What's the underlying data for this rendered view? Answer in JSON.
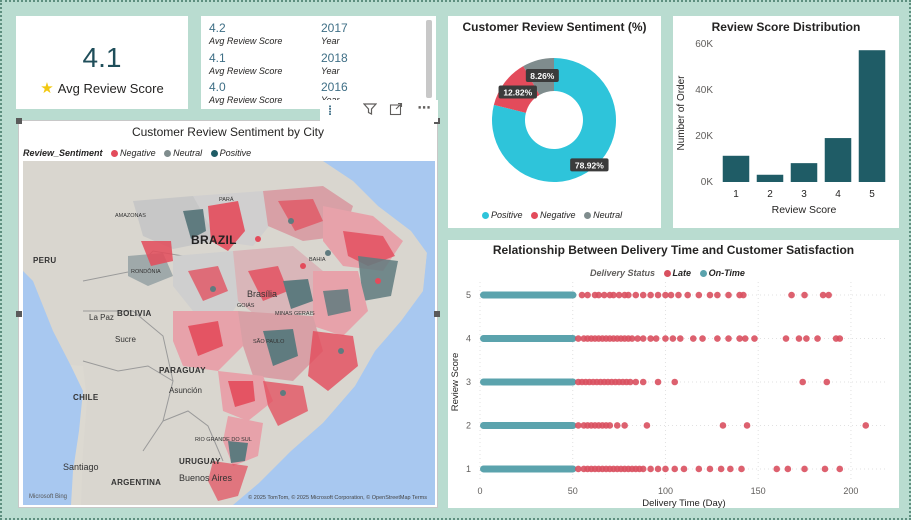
{
  "colors": {
    "positive": "#2ec4da",
    "negative": "#e34b5b",
    "neutral": "#7f8c8d",
    "bar": "#1f5c66",
    "late": "#d9505f",
    "ontime": "#5ba3ad",
    "accent": "#1f4e5a"
  },
  "kpi": {
    "value": "4.1",
    "label": "Avg Review Score",
    "icon": "star-icon"
  },
  "multi_row_card": {
    "rows": [
      {
        "score": "4.2",
        "score_label": "Avg Review Score",
        "year": "2017",
        "year_label": "Year"
      },
      {
        "score": "4.1",
        "score_label": "Avg Review Score",
        "year": "2018",
        "year_label": "Year"
      },
      {
        "score": "4.0",
        "score_label": "Avg Review Score",
        "year": "2016",
        "year_label": "Year"
      }
    ]
  },
  "toolbar": {
    "icons": [
      "filter-icon",
      "focus-mode-icon",
      "more-options-icon"
    ]
  },
  "map": {
    "title": "Customer Review Sentiment by City",
    "legend_title": "Review_Sentiment",
    "legend": [
      "Negative",
      "Neutral",
      "Positive"
    ],
    "labels": {
      "brazil": "BRAZIL",
      "peru": "PERU",
      "bolivia": "BOLIVIA",
      "paraguay": "PARAGUAY",
      "chile": "CHILE",
      "argentina": "ARGENTINA",
      "uruguay": "URUGUAY",
      "lapaz": "La Paz",
      "sucre": "Sucre",
      "asuncion": "Asunción",
      "santiago": "Santiago",
      "buenosaires": "Buenos Aires",
      "brasilia": "Brasília",
      "amazonas": "AMAZONAS",
      "para": "PARÁ",
      "rondonia": "RONDÔNIA",
      "goias": "GOIÁS",
      "saopaulo": "SÃO PAULO",
      "riograndedosul": "RIO GRANDE DO SUL",
      "bahia": "BAHIA",
      "minas": "MINAS GERAIS"
    },
    "credit": "© 2025 TomTom, © 2025 Microsoft Corporation, © OpenStreetMap Terms",
    "brand": "Microsoft Bing"
  },
  "chart_data": [
    {
      "type": "pie",
      "title": "Customer Review Sentiment (%)",
      "categories": [
        "Positive",
        "Negative",
        "Neutral"
      ],
      "values": [
        78.92,
        12.82,
        8.26
      ],
      "labels": [
        "78.92%",
        "12.82%",
        "8.26%"
      ],
      "legend_position": "bottom"
    },
    {
      "type": "bar",
      "title": "Review Score Distribution",
      "categories": [
        "1",
        "2",
        "3",
        "4",
        "5"
      ],
      "values": [
        11400,
        3150,
        8200,
        19100,
        57300
      ],
      "xlabel": "Review Score",
      "ylabel": "Number of Order",
      "ylim": [
        0,
        60000
      ],
      "yticks": [
        0,
        20000,
        40000,
        60000
      ],
      "ytick_labels": [
        "0K",
        "20K",
        "40K",
        "60K"
      ]
    },
    {
      "type": "scatter",
      "title": "Relationship Between Delivery Time and Customer Satisfaction",
      "xlabel": "Delivery Time (Day)",
      "ylabel": "Review Score",
      "legend_title": "Delivery Status",
      "series_names": [
        "Late",
        "On-Time"
      ],
      "xlim": [
        0,
        220
      ],
      "ylim": [
        0.7,
        5.3
      ],
      "xticks": [
        0,
        50,
        100,
        150,
        200
      ],
      "yticks": [
        1,
        2,
        3,
        4,
        5
      ],
      "ontime_range": [
        0,
        52
      ],
      "late_points": {
        "5": [
          55,
          58,
          62,
          64,
          67,
          70,
          72,
          75,
          78,
          80,
          84,
          88,
          92,
          96,
          100,
          103,
          107,
          112,
          118,
          124,
          128,
          134,
          140,
          142,
          168,
          175,
          185,
          188
        ],
        "4": [
          53,
          56,
          58,
          60,
          62,
          64,
          66,
          68,
          70,
          72,
          74,
          76,
          78,
          80,
          82,
          85,
          88,
          92,
          95,
          100,
          104,
          108,
          115,
          120,
          128,
          134,
          140,
          143,
          148,
          165,
          172,
          176,
          182,
          192,
          194
        ],
        "3": [
          53,
          55,
          57,
          59,
          61,
          63,
          65,
          67,
          69,
          71,
          73,
          75,
          77,
          79,
          81,
          84,
          88,
          96,
          105,
          174,
          187
        ],
        "2": [
          53,
          56,
          58,
          60,
          62,
          64,
          66,
          68,
          70,
          74,
          78,
          90,
          131,
          144,
          208
        ],
        "1": [
          53,
          56,
          58,
          60,
          62,
          64,
          66,
          68,
          70,
          72,
          74,
          76,
          78,
          80,
          82,
          84,
          86,
          88,
          92,
          96,
          100,
          105,
          110,
          118,
          124,
          130,
          135,
          141,
          160,
          166,
          175,
          186,
          194
        ]
      }
    }
  ]
}
